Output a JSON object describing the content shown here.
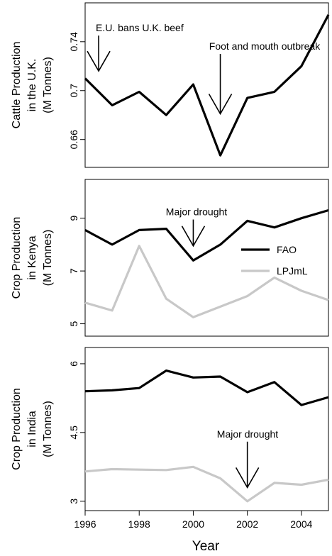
{
  "colors": {
    "fao": "#000000",
    "lpjml": "#c8c8c8",
    "frame": "#000000"
  },
  "legend": {
    "entries": [
      {
        "label": "FAO",
        "color": "#000000"
      },
      {
        "label": "LPJmL",
        "color": "#c8c8c8"
      }
    ]
  },
  "chart_data": {
    "type": "line",
    "x_axis": {
      "label": "Year",
      "ticks": [
        1996,
        1998,
        2000,
        2002,
        2004
      ],
      "tick_labels": [
        "1996",
        "1998",
        "2000",
        "2002",
        "2004"
      ],
      "range": [
        1996,
        2005
      ]
    },
    "panels": [
      {
        "id": "uk",
        "ylabel_lines": [
          "Cattle Production",
          "in the U.K.",
          "(M Tonnes)"
        ],
        "ylim": [
          0.643,
          0.766
        ],
        "yticks": [
          0.66,
          0.7,
          0.74
        ],
        "ytick_labels": [
          "0.66",
          "0.7",
          "0.74"
        ],
        "x": [
          1996,
          1997,
          1998,
          1999,
          2000,
          2001,
          2002,
          2003,
          2004,
          2005
        ],
        "series": [
          {
            "name": "FAO",
            "values": [
              0.71,
              0.688,
              0.699,
              0.68,
              0.705,
              0.647,
              0.694,
              0.699,
              0.72,
              0.762
            ]
          }
        ],
        "annotations": [
          {
            "text": "E.U. bans U.K. beef",
            "x": 1996.5,
            "y_top": 0.745,
            "y_tip": 0.716
          },
          {
            "text": "Foot and mouth outbreak",
            "x": 2001,
            "y_top": 0.73,
            "y_tip": 0.681
          }
        ]
      },
      {
        "id": "kenya",
        "ylabel_lines": [
          "Crop Production",
          "in Kenya",
          "(M Tonnes)"
        ],
        "ylim": [
          4.8,
          10.2
        ],
        "yticks": [
          5,
          7,
          9
        ],
        "ytick_labels": [
          "5",
          "7",
          "9"
        ],
        "x": [
          1996,
          1997,
          1998,
          1999,
          2000,
          2001,
          2002,
          2003,
          2004,
          2005
        ],
        "series": [
          {
            "name": "FAO",
            "values": [
              8.55,
              8.0,
              8.55,
              8.6,
              7.4,
              8.0,
              8.9,
              8.65,
              9.0,
              9.3
            ]
          },
          {
            "name": "LPJmL",
            "values": [
              5.8,
              5.5,
              7.95,
              5.95,
              5.25,
              5.65,
              6.05,
              6.75,
              6.25,
              5.9
            ]
          }
        ],
        "annotations": [
          {
            "text": "Major drought",
            "x": 2000,
            "y_top": 8.95,
            "y_tip": 7.95
          }
        ]
      },
      {
        "id": "india",
        "ylabel_lines": [
          "Crop Production",
          "in India",
          "(M Tonnes)"
        ],
        "ylim": [
          2.95,
          6.2
        ],
        "yticks": [
          3,
          4.5,
          6
        ],
        "ytick_labels": [
          "3",
          "4.5",
          "6"
        ],
        "x": [
          1996,
          1997,
          1998,
          1999,
          2000,
          2001,
          2002,
          2003,
          2004,
          2005
        ],
        "series": [
          {
            "name": "FAO",
            "values": [
              5.4,
              5.42,
              5.47,
              5.85,
              5.7,
              5.72,
              5.38,
              5.6,
              5.1,
              5.27
            ]
          },
          {
            "name": "LPJmL",
            "values": [
              3.65,
              3.7,
              3.69,
              3.68,
              3.75,
              3.5,
              3.0,
              3.4,
              3.36,
              3.47
            ]
          }
        ],
        "annotations": [
          {
            "text": "Major drought",
            "x": 2002,
            "y_top": 4.3,
            "y_tip": 3.3
          }
        ]
      }
    ]
  }
}
